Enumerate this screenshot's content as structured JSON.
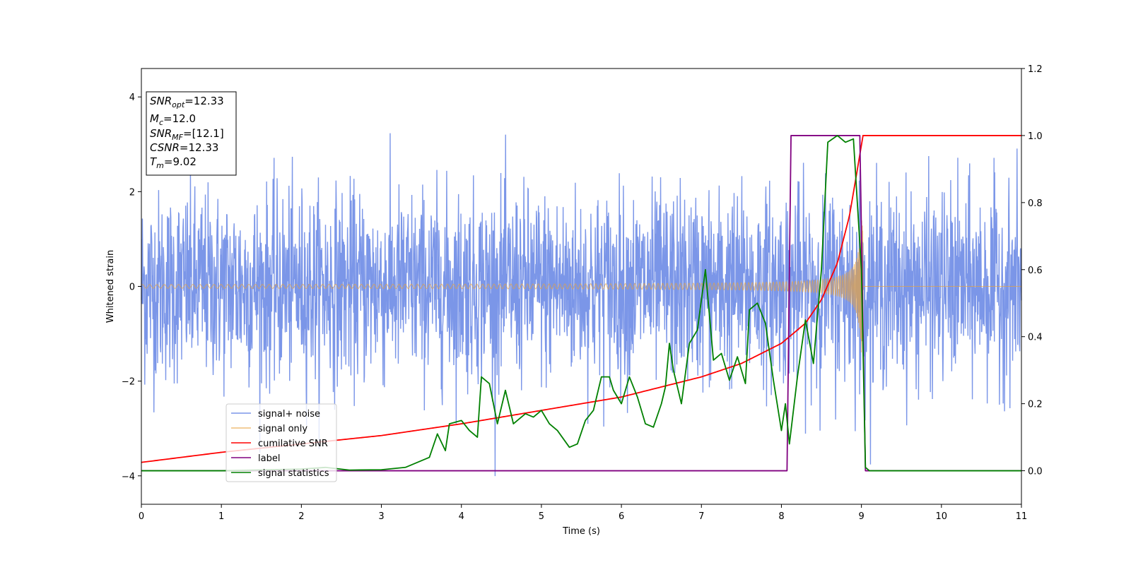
{
  "chart_data": {
    "type": "line",
    "xlabel": "Time (s)",
    "ylabel_left": "Whitened strain",
    "xlim": [
      0,
      11
    ],
    "ylim_left": [
      -4.6,
      4.6
    ],
    "ylim_right": [
      -0.1,
      1.2
    ],
    "x_ticks": [
      0,
      1,
      2,
      3,
      4,
      5,
      6,
      7,
      8,
      9,
      10,
      11
    ],
    "y_left_ticks": [
      -4,
      -2,
      0,
      2,
      4
    ],
    "y_right_ticks": [
      0.0,
      0.2,
      0.4,
      0.6,
      0.8,
      1.0,
      1.2
    ],
    "grid": false,
    "legend_position": "lower-left",
    "info_box": {
      "snr_opt": {
        "base": "SNR",
        "sub": "opt",
        "value": "=12.33"
      },
      "mc": {
        "base": "M",
        "sub": "c",
        "value": "=12.0"
      },
      "snr_mf": {
        "base": "SNR",
        "sub": "MF",
        "value": "=[12.1]"
      },
      "csnr": {
        "base": "CSNR",
        "value": "=12.33"
      },
      "tm": {
        "base": "T",
        "sub": "m",
        "value": "=9.02"
      }
    },
    "series": [
      {
        "name": "signal+ noise",
        "axis": "left",
        "color": "#7b96e8",
        "noise_sigma": 1.0,
        "x_range": [
          0,
          11
        ]
      },
      {
        "name": "signal only",
        "axis": "left",
        "color": "#e8a23e",
        "merger_time": 9.02,
        "amplitude_start": 0.04,
        "amplitude_peak": 1.4
      },
      {
        "name": "cumilative SNR",
        "axis": "right",
        "color": "#ff0000",
        "points": [
          [
            0,
            0.025
          ],
          [
            1,
            0.055
          ],
          [
            2,
            0.08
          ],
          [
            3,
            0.105
          ],
          [
            4,
            0.14
          ],
          [
            5,
            0.18
          ],
          [
            6,
            0.22
          ],
          [
            7,
            0.28
          ],
          [
            7.5,
            0.32
          ],
          [
            8,
            0.38
          ],
          [
            8.3,
            0.44
          ],
          [
            8.5,
            0.51
          ],
          [
            8.7,
            0.62
          ],
          [
            8.85,
            0.76
          ],
          [
            8.95,
            0.9
          ],
          [
            9.02,
            1.0
          ],
          [
            11,
            1.0
          ]
        ]
      },
      {
        "name": "label",
        "axis": "right",
        "color": "#800080",
        "points": [
          [
            0,
            0
          ],
          [
            8.07,
            0
          ],
          [
            8.12,
            1.0
          ],
          [
            8.98,
            1.0
          ],
          [
            9.05,
            0
          ],
          [
            11,
            0
          ]
        ]
      },
      {
        "name": "signal statistics",
        "axis": "right",
        "color": "#008000",
        "points": [
          [
            0,
            0
          ],
          [
            1,
            0
          ],
          [
            2,
            0.005
          ],
          [
            2.3,
            0.01
          ],
          [
            2.6,
            0.002
          ],
          [
            3,
            0.003
          ],
          [
            3.3,
            0.01
          ],
          [
            3.5,
            0.03
          ],
          [
            3.6,
            0.04
          ],
          [
            3.7,
            0.11
          ],
          [
            3.8,
            0.06
          ],
          [
            3.85,
            0.14
          ],
          [
            4.0,
            0.15
          ],
          [
            4.1,
            0.12
          ],
          [
            4.2,
            0.1
          ],
          [
            4.25,
            0.28
          ],
          [
            4.35,
            0.26
          ],
          [
            4.45,
            0.14
          ],
          [
            4.55,
            0.24
          ],
          [
            4.65,
            0.14
          ],
          [
            4.8,
            0.17
          ],
          [
            4.9,
            0.16
          ],
          [
            5.0,
            0.18
          ],
          [
            5.1,
            0.14
          ],
          [
            5.2,
            0.12
          ],
          [
            5.35,
            0.07
          ],
          [
            5.45,
            0.08
          ],
          [
            5.55,
            0.15
          ],
          [
            5.65,
            0.18
          ],
          [
            5.75,
            0.28
          ],
          [
            5.85,
            0.28
          ],
          [
            5.9,
            0.24
          ],
          [
            6.0,
            0.2
          ],
          [
            6.1,
            0.28
          ],
          [
            6.2,
            0.22
          ],
          [
            6.3,
            0.14
          ],
          [
            6.4,
            0.13
          ],
          [
            6.5,
            0.2
          ],
          [
            6.55,
            0.25
          ],
          [
            6.6,
            0.38
          ],
          [
            6.65,
            0.3
          ],
          [
            6.75,
            0.2
          ],
          [
            6.85,
            0.38
          ],
          [
            6.95,
            0.42
          ],
          [
            7.05,
            0.6
          ],
          [
            7.15,
            0.33
          ],
          [
            7.25,
            0.35
          ],
          [
            7.35,
            0.27
          ],
          [
            7.45,
            0.34
          ],
          [
            7.55,
            0.26
          ],
          [
            7.6,
            0.48
          ],
          [
            7.7,
            0.5
          ],
          [
            7.8,
            0.44
          ],
          [
            7.9,
            0.27
          ],
          [
            8.0,
            0.12
          ],
          [
            8.05,
            0.2
          ],
          [
            8.1,
            0.08
          ],
          [
            8.2,
            0.28
          ],
          [
            8.3,
            0.45
          ],
          [
            8.4,
            0.32
          ],
          [
            8.5,
            0.6
          ],
          [
            8.58,
            0.98
          ],
          [
            8.7,
            1.0
          ],
          [
            8.8,
            0.98
          ],
          [
            8.9,
            0.99
          ],
          [
            9.0,
            0.6
          ],
          [
            9.05,
            0.01
          ],
          [
            9.1,
            0
          ],
          [
            11,
            0
          ]
        ]
      }
    ]
  }
}
